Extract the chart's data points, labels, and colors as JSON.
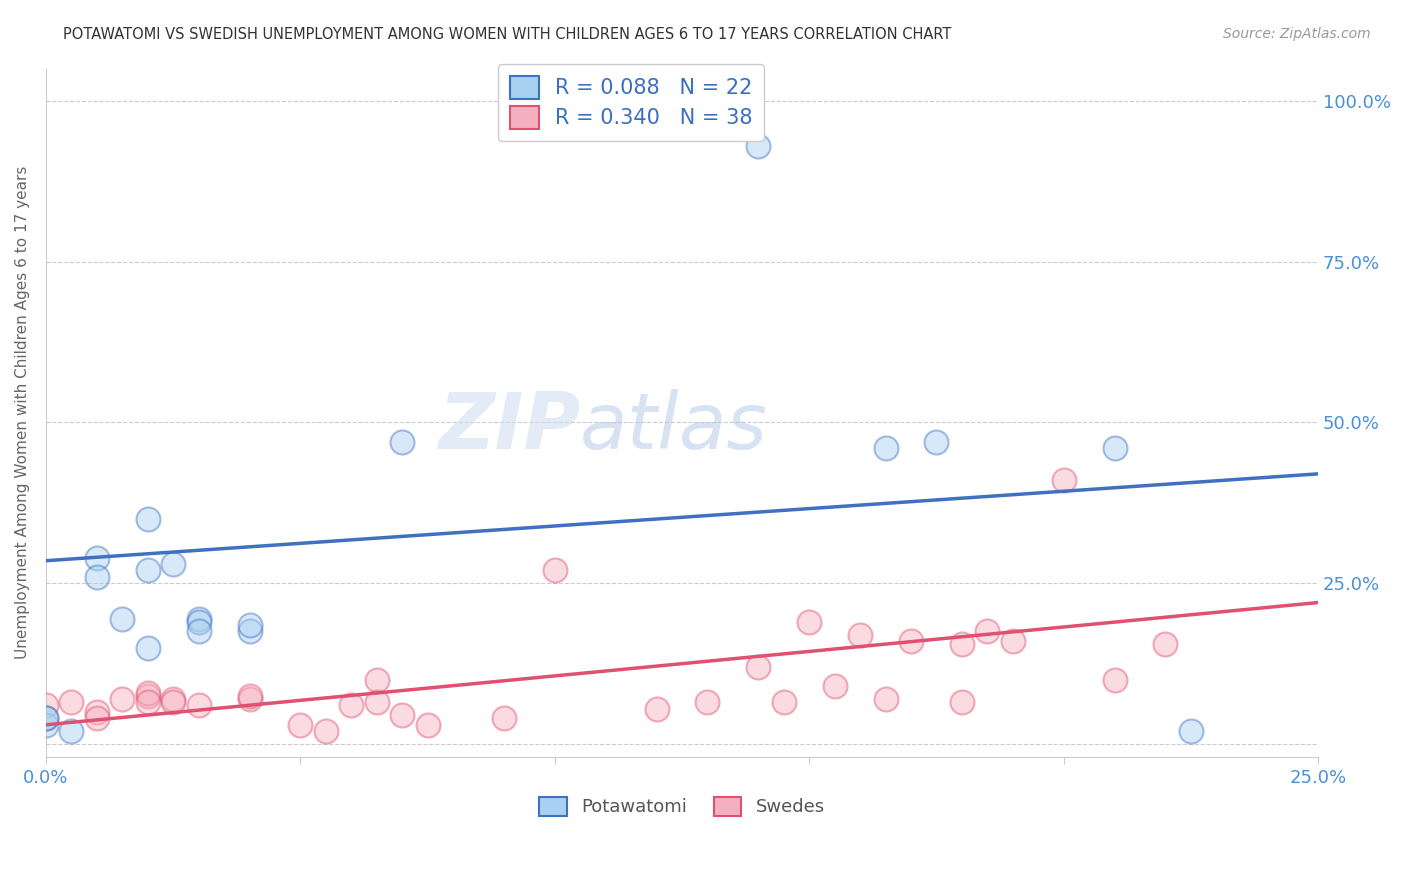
{
  "title": "POTAWATOMI VS SWEDISH UNEMPLOYMENT AMONG WOMEN WITH CHILDREN AGES 6 TO 17 YEARS CORRELATION CHART",
  "source": "Source: ZipAtlas.com",
  "ylabel_left": "Unemployment Among Women with Children Ages 6 to 17 years",
  "xlim": [
    0.0,
    0.25
  ],
  "ylim": [
    -0.02,
    1.05
  ],
  "xticks": [
    0.0,
    0.05,
    0.1,
    0.15,
    0.2,
    0.25
  ],
  "xticklabels": [
    "0.0%",
    "",
    "",
    "",
    "",
    "25.0%"
  ],
  "yticks_right": [
    0.0,
    0.25,
    0.5,
    0.75,
    1.0
  ],
  "yticklabels_right": [
    "",
    "25.0%",
    "50.0%",
    "75.0%",
    "100.0%"
  ],
  "potawatomi_R": 0.088,
  "potawatomi_N": 22,
  "swedes_R": 0.34,
  "swedes_N": 38,
  "potawatomi_color": "#A8D0F0",
  "swedes_color": "#F5B0C0",
  "potawatomi_line_color": "#4070C0",
  "swedes_line_color": "#E05070",
  "blue_line_y0": 0.285,
  "blue_line_y1": 0.42,
  "pink_line_y0": 0.03,
  "pink_line_y1": 0.22,
  "potawatomi_scatter_x": [
    0.0,
    0.0,
    0.0,
    0.005,
    0.01,
    0.01,
    0.015,
    0.02,
    0.02,
    0.025,
    0.03,
    0.03,
    0.03,
    0.04,
    0.04,
    0.07,
    0.14,
    0.175,
    0.21,
    0.02,
    0.165,
    0.225
  ],
  "potawatomi_scatter_y": [
    0.03,
    0.04,
    0.04,
    0.02,
    0.29,
    0.26,
    0.195,
    0.35,
    0.27,
    0.28,
    0.195,
    0.19,
    0.175,
    0.175,
    0.185,
    0.47,
    0.93,
    0.47,
    0.46,
    0.15,
    0.46,
    0.02
  ],
  "swedes_scatter_x": [
    0.0,
    0.005,
    0.01,
    0.01,
    0.015,
    0.02,
    0.02,
    0.02,
    0.025,
    0.025,
    0.03,
    0.04,
    0.04,
    0.05,
    0.055,
    0.06,
    0.065,
    0.065,
    0.07,
    0.075,
    0.09,
    0.1,
    0.12,
    0.13,
    0.14,
    0.145,
    0.15,
    0.155,
    0.16,
    0.165,
    0.17,
    0.18,
    0.18,
    0.185,
    0.19,
    0.2,
    0.21,
    0.22
  ],
  "swedes_scatter_y": [
    0.06,
    0.065,
    0.05,
    0.04,
    0.07,
    0.075,
    0.08,
    0.065,
    0.07,
    0.065,
    0.06,
    0.07,
    0.075,
    0.03,
    0.02,
    0.06,
    0.1,
    0.065,
    0.045,
    0.03,
    0.04,
    0.27,
    0.055,
    0.065,
    0.12,
    0.065,
    0.19,
    0.09,
    0.17,
    0.07,
    0.16,
    0.065,
    0.155,
    0.175,
    0.16,
    0.41,
    0.1,
    0.155
  ],
  "watermark_zip": "ZIP",
  "watermark_atlas": "atlas",
  "background_color": "#FFFFFF",
  "grid_color": "#CCCCCC",
  "title_color": "#333333",
  "axis_label_color": "#666666",
  "right_axis_color": "#4A90D9",
  "marker_size": 300,
  "marker_alpha": 0.45,
  "marker_lw": 1.5
}
